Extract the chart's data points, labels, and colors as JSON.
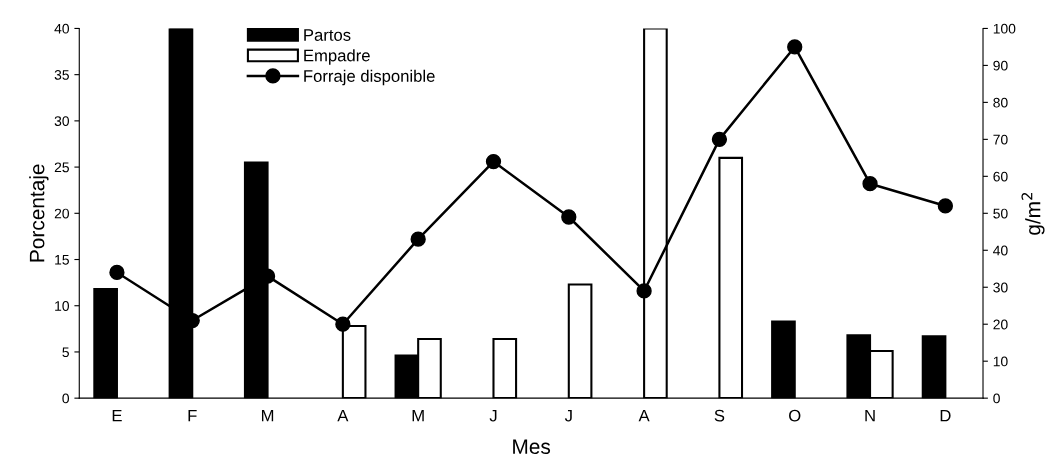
{
  "chart_data": {
    "type": "bar",
    "xlabel": "Mes",
    "ylabel": "Porcentaje",
    "y2label": "g/m$^{2}$",
    "categories": [
      "E",
      "F",
      "M",
      "A",
      "M",
      "J",
      "J",
      "A",
      "S",
      "O",
      "N",
      "D"
    ],
    "series": [
      {
        "name": "Partos",
        "color": "#000000",
        "values": [
          11.8,
          40,
          25.5,
          null,
          4.6,
          null,
          null,
          null,
          null,
          8.3,
          6.8,
          6.7
        ]
      },
      {
        "name": "Empadre",
        "color": "#ffffff",
        "values": [
          null,
          null,
          null,
          7.8,
          6.4,
          6.4,
          12.3,
          40,
          26,
          null,
          5.1,
          null
        ]
      },
      {
        "name": "Forraje disponible",
        "type": "line",
        "axis": "y2",
        "color": "#000000",
        "marker": "circle",
        "values": [
          34,
          21,
          33,
          20,
          43,
          64,
          49,
          29,
          70,
          95,
          58,
          52
        ]
      }
    ],
    "ylim": [
      0,
      40
    ],
    "yticks": [
      0,
      5,
      10,
      15,
      20,
      25,
      30,
      35,
      40
    ],
    "y2lim": [
      0,
      100
    ],
    "y2ticks": [
      0,
      10,
      20,
      30,
      40,
      50,
      60,
      70,
      80,
      90,
      100
    ],
    "grid": false,
    "legend": "top left"
  }
}
